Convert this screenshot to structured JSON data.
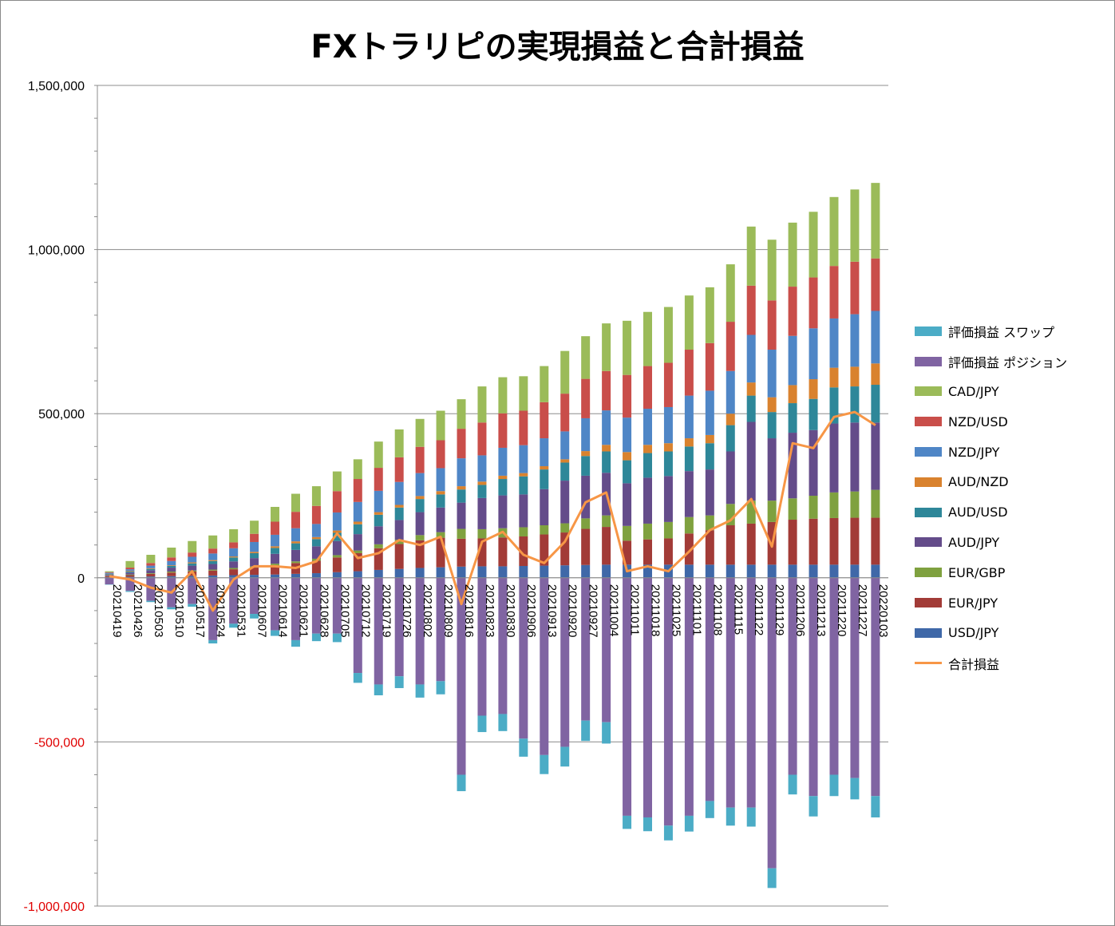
{
  "colors": {
    "USD/JPY": "#3F68A8",
    "EUR/JPY": "#A23B37",
    "EUR/GBP": "#7FA13F",
    "AUD/JPY": "#644C8A",
    "AUD/USD": "#2E8799",
    "AUD/NZD": "#D9822E",
    "NZD/JPY": "#4F86C6",
    "NZD/USD": "#C94E4A",
    "CAD/JPY": "#9BBB59",
    "pos": "#8064A2",
    "swap": "#4BACC6",
    "total": "#F79646"
  },
  "chart_data": {
    "type": "bar",
    "title": "FXトラリピの実現損益と合計損益",
    "ylim": [
      -1000000,
      1500000
    ],
    "y_ticks": [
      "1,500,000",
      "1,000,000",
      "500,000",
      "0",
      "-500,000",
      "-1,000,000"
    ],
    "y_tick_values": [
      1500000,
      1000000,
      500000,
      0,
      -500000,
      -1000000
    ],
    "grid": true,
    "legend_position": "right",
    "legend": [
      "評価損益 スワップ",
      "評価損益 ポジション",
      "CAD/JPY",
      "NZD/USD",
      "NZD/JPY",
      "AUD/NZD",
      "AUD/USD",
      "AUD/JPY",
      "EUR/GBP",
      "EUR/JPY",
      "USD/JPY",
      "合計損益"
    ],
    "categories": [
      "20210419",
      "20210426",
      "20210503",
      "20210510",
      "20210517",
      "20210524",
      "20210531",
      "20210607",
      "20210614",
      "20210621",
      "20210628",
      "20210705",
      "20210712",
      "20210719",
      "20210726",
      "20210802",
      "20210809",
      "20210816",
      "20210823",
      "20210830",
      "20210906",
      "20210913",
      "20210920",
      "20210927",
      "20211004",
      "20211011",
      "20211018",
      "20211025",
      "20211101",
      "20211108",
      "20211115",
      "20211122",
      "20211129",
      "20211206",
      "20211213",
      "20211220",
      "20211227",
      "20220103"
    ],
    "series": [
      {
        "name": "USD/JPY",
        "values": [
          2000,
          3000,
          4000,
          5000,
          6000,
          7000,
          8000,
          9000,
          10000,
          12000,
          14000,
          17000,
          20000,
          24000,
          27000,
          30000,
          32000,
          34000,
          35000,
          35000,
          36000,
          37000,
          38000,
          39000,
          40000,
          40000,
          40000,
          40000,
          40000,
          40000,
          40000,
          40000,
          40000,
          40000,
          40000,
          40000,
          40000,
          40000
        ]
      },
      {
        "name": "EUR/JPY",
        "values": [
          3000,
          5000,
          8000,
          11000,
          13000,
          15000,
          18000,
          22000,
          28000,
          33000,
          38000,
          45000,
          55000,
          66000,
          76000,
          84000,
          90000,
          85000,
          85000,
          88000,
          90000,
          95000,
          100000,
          110000,
          115000,
          73000,
          77000,
          80000,
          95000,
          105000,
          120000,
          125000,
          130000,
          137000,
          140000,
          142000,
          143000,
          143000
        ]
      },
      {
        "name": "EUR/GBP",
        "values": [
          1000,
          2000,
          2000,
          3000,
          3000,
          3000,
          4000,
          4000,
          5000,
          5000,
          6000,
          7000,
          8000,
          12000,
          13000,
          16000,
          17000,
          30000,
          28000,
          28000,
          28000,
          28000,
          28000,
          32000,
          35000,
          45000,
          48000,
          50000,
          50000,
          45000,
          65000,
          70000,
          65000,
          65000,
          70000,
          78000,
          80000,
          85000
        ]
      },
      {
        "name": "AUD/JPY",
        "values": [
          3000,
          6000,
          9000,
          12000,
          15000,
          17000,
          20000,
          25000,
          30000,
          35000,
          38000,
          43000,
          50000,
          55000,
          60000,
          70000,
          75000,
          80000,
          95000,
          100000,
          100000,
          110000,
          130000,
          130000,
          130000,
          130000,
          140000,
          140000,
          140000,
          140000,
          160000,
          240000,
          190000,
          200000,
          200000,
          210000,
          210000,
          205000
        ]
      },
      {
        "name": "AUD/USD",
        "values": [
          2000,
          3000,
          4000,
          5000,
          7000,
          9000,
          12000,
          15000,
          18000,
          20000,
          22000,
          25000,
          30000,
          35000,
          38000,
          40000,
          40000,
          40000,
          40000,
          50000,
          55000,
          60000,
          55000,
          60000,
          65000,
          70000,
          75000,
          75000,
          75000,
          80000,
          80000,
          80000,
          80000,
          90000,
          95000,
          110000,
          110000,
          115000
        ]
      },
      {
        "name": "AUD/NZD",
        "values": [
          1000,
          2000,
          2000,
          2000,
          3000,
          3000,
          3000,
          4000,
          5000,
          6000,
          6000,
          7000,
          8000,
          8000,
          8000,
          9000,
          10000,
          10000,
          10000,
          10000,
          10000,
          10000,
          10000,
          15000,
          20000,
          25000,
          25000,
          25000,
          25000,
          25000,
          35000,
          40000,
          45000,
          55000,
          60000,
          60000,
          60000,
          65000
        ]
      },
      {
        "name": "NZD/JPY",
        "values": [
          3000,
          5000,
          8000,
          13000,
          17000,
          20000,
          25000,
          30000,
          35000,
          40000,
          40000,
          55000,
          60000,
          65000,
          70000,
          70000,
          70000,
          85000,
          80000,
          85000,
          85000,
          85000,
          85000,
          100000,
          105000,
          105000,
          110000,
          110000,
          130000,
          135000,
          130000,
          145000,
          145000,
          150000,
          155000,
          150000,
          160000,
          160000
        ]
      },
      {
        "name": "NZD/USD",
        "values": [
          2000,
          5000,
          8000,
          11000,
          13000,
          15000,
          18000,
          25000,
          40000,
          50000,
          55000,
          65000,
          70000,
          70000,
          75000,
          80000,
          85000,
          90000,
          100000,
          105000,
          105000,
          110000,
          115000,
          120000,
          120000,
          130000,
          130000,
          135000,
          140000,
          145000,
          150000,
          150000,
          150000,
          150000,
          155000,
          160000,
          160000,
          160000
        ]
      },
      {
        "name": "CAD/JPY",
        "values": [
          3000,
          20000,
          25000,
          30000,
          35000,
          40000,
          40000,
          40000,
          45000,
          55000,
          60000,
          60000,
          60000,
          80000,
          85000,
          85000,
          90000,
          90000,
          110000,
          110000,
          105000,
          110000,
          130000,
          130000,
          145000,
          165000,
          165000,
          170000,
          165000,
          170000,
          175000,
          180000,
          185000,
          195000,
          200000,
          210000,
          220000,
          230000
        ]
      },
      {
        "name": "評価損益 ポジション",
        "values": [
          -20000,
          -40000,
          -70000,
          -90000,
          -80000,
          -190000,
          -140000,
          -110000,
          -160000,
          -190000,
          -170000,
          -170000,
          -290000,
          -325000,
          -300000,
          -325000,
          -315000,
          -600000,
          -420000,
          -415000,
          -490000,
          -540000,
          -515000,
          -435000,
          -440000,
          -725000,
          -730000,
          -755000,
          -725000,
          -680000,
          -700000,
          -700000,
          -885000,
          -600000,
          -665000,
          -600000,
          -610000,
          -665000
        ]
      },
      {
        "name": "評価損益 スワップ",
        "values": [
          -1000,
          -3000,
          -4000,
          -6000,
          -8000,
          -10000,
          -12000,
          -14000,
          -17000,
          -20000,
          -23000,
          -26000,
          -30000,
          -33000,
          -36000,
          -40000,
          -40000,
          -50000,
          -50000,
          -52000,
          -55000,
          -58000,
          -60000,
          -62000,
          -65000,
          -40000,
          -42000,
          -45000,
          -48000,
          -52000,
          -55000,
          -58000,
          -60000,
          -60000,
          -62000,
          -65000,
          -65000,
          -65000
        ]
      },
      {
        "name": "合計損益",
        "values": [
          5000,
          -5000,
          -30000,
          -45000,
          20000,
          -100000,
          -5000,
          35000,
          35000,
          30000,
          50000,
          135000,
          60000,
          75000,
          115000,
          100000,
          125000,
          -80000,
          110000,
          140000,
          70000,
          45000,
          110000,
          230000,
          260000,
          20000,
          35000,
          20000,
          80000,
          145000,
          175000,
          240000,
          95000,
          410000,
          395000,
          490000,
          505000,
          465000
        ]
      }
    ]
  }
}
